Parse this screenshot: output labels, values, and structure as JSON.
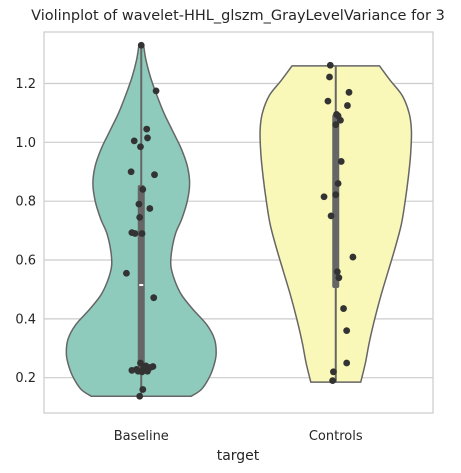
{
  "chart_data": {
    "type": "violin",
    "title": "Violinplot of wavelet-HHL_glszm_GrayLevelVariance for 3",
    "xlabel": "target",
    "ylabel": "",
    "ylim": [
      0.08,
      1.375
    ],
    "yticks": [
      0.2,
      0.4,
      0.6,
      0.8,
      1.0,
      1.2
    ],
    "ytick_labels": [
      "0.2",
      "0.4",
      "0.6",
      "0.8",
      "1.0",
      "1.2"
    ],
    "grid": true,
    "categories": [
      "Baseline",
      "Controls"
    ],
    "series": [
      {
        "category": "Baseline",
        "color": "#8ecbbd",
        "min": 0.137,
        "max": 1.33,
        "q1": 0.23,
        "median": 0.515,
        "q3": 0.855,
        "density_profile": [
          [
            0.137,
            0.64
          ],
          [
            0.16,
            0.77
          ],
          [
            0.2,
            0.87
          ],
          [
            0.24,
            0.93
          ],
          [
            0.28,
            0.96
          ],
          [
            0.33,
            0.94
          ],
          [
            0.38,
            0.84
          ],
          [
            0.43,
            0.67
          ],
          [
            0.48,
            0.52
          ],
          [
            0.53,
            0.43
          ],
          [
            0.58,
            0.38
          ],
          [
            0.63,
            0.39
          ],
          [
            0.69,
            0.44
          ],
          [
            0.74,
            0.52
          ],
          [
            0.8,
            0.59
          ],
          [
            0.86,
            0.62
          ],
          [
            0.92,
            0.59
          ],
          [
            0.98,
            0.51
          ],
          [
            1.04,
            0.4
          ],
          [
            1.1,
            0.29
          ],
          [
            1.16,
            0.2
          ],
          [
            1.22,
            0.12
          ],
          [
            1.28,
            0.06
          ],
          [
            1.33,
            0.03
          ]
        ],
        "points": [
          [
            0.0,
            1.33
          ],
          [
            0.19,
            1.175
          ],
          [
            0.07,
            1.045
          ],
          [
            -0.09,
            1.005
          ],
          [
            0.08,
            1.015
          ],
          [
            -0.01,
            0.985
          ],
          [
            -0.13,
            0.9
          ],
          [
            0.17,
            0.89
          ],
          [
            0.02,
            0.84
          ],
          [
            -0.03,
            0.79
          ],
          [
            0.11,
            0.775
          ],
          [
            -0.02,
            0.745
          ],
          [
            -0.12,
            0.693
          ],
          [
            -0.08,
            0.69
          ],
          [
            0.01,
            0.69
          ],
          [
            -0.19,
            0.555
          ],
          [
            0.16,
            0.472
          ],
          [
            -0.01,
            0.25
          ],
          [
            0.06,
            0.24
          ],
          [
            0.15,
            0.238
          ],
          [
            0.12,
            0.235
          ],
          [
            0.03,
            0.233
          ],
          [
            -0.06,
            0.228
          ],
          [
            -0.12,
            0.225
          ],
          [
            0.08,
            0.222
          ],
          [
            -0.04,
            0.222
          ],
          [
            0.01,
            0.22
          ],
          [
            0.02,
            0.16
          ],
          [
            -0.02,
            0.137
          ]
        ]
      },
      {
        "category": "Controls",
        "color": "#f9f8b8",
        "min": 0.185,
        "max": 1.26,
        "q1": 0.505,
        "median": 0.82,
        "q3": 1.095,
        "density_profile": [
          [
            0.185,
            0.32
          ],
          [
            0.25,
            0.38
          ],
          [
            0.32,
            0.43
          ],
          [
            0.4,
            0.5
          ],
          [
            0.48,
            0.58
          ],
          [
            0.56,
            0.67
          ],
          [
            0.64,
            0.76
          ],
          [
            0.72,
            0.84
          ],
          [
            0.8,
            0.89
          ],
          [
            0.88,
            0.93
          ],
          [
            0.96,
            0.96
          ],
          [
            1.04,
            0.97
          ],
          [
            1.1,
            0.94
          ],
          [
            1.16,
            0.85
          ],
          [
            1.21,
            0.7
          ],
          [
            1.26,
            0.56
          ]
        ],
        "points": [
          [
            -0.07,
            1.262
          ],
          [
            -0.08,
            1.222
          ],
          [
            0.17,
            1.17
          ],
          [
            -0.1,
            1.14
          ],
          [
            0.15,
            1.125
          ],
          [
            0.01,
            1.095
          ],
          [
            0.03,
            1.09
          ],
          [
            0.06,
            1.075
          ],
          [
            0.0,
            1.06
          ],
          [
            0.07,
            0.935
          ],
          [
            0.03,
            0.86
          ],
          [
            0.0,
            0.822
          ],
          [
            -0.15,
            0.815
          ],
          [
            -0.06,
            0.75
          ],
          [
            0.22,
            0.61
          ],
          [
            0.02,
            0.56
          ],
          [
            0.04,
            0.54
          ],
          [
            0.1,
            0.435
          ],
          [
            0.14,
            0.36
          ],
          [
            0.14,
            0.25
          ],
          [
            -0.03,
            0.22
          ],
          [
            -0.04,
            0.19
          ]
        ]
      }
    ]
  }
}
